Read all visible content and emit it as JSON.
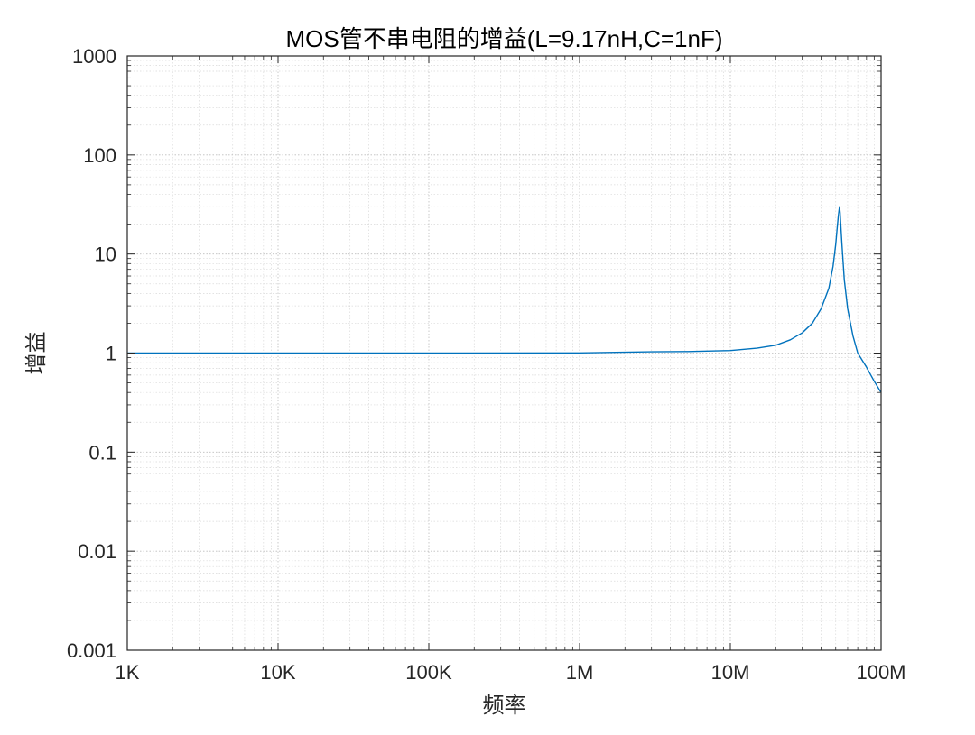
{
  "chart_data": {
    "type": "line",
    "title": "MOS管不串电阻的增益(L=9.17nH,C=1nF)",
    "xlabel": "频率",
    "ylabel": "增益",
    "x_scale": "log",
    "y_scale": "log",
    "xlim": [
      1000,
      100000000
    ],
    "ylim": [
      0.001,
      1000
    ],
    "grid": true,
    "minor_grid": true,
    "x_ticks": [
      {
        "value": 1000,
        "label": "1K"
      },
      {
        "value": 10000,
        "label": "10K"
      },
      {
        "value": 100000,
        "label": "100K"
      },
      {
        "value": 1000000,
        "label": "1M"
      },
      {
        "value": 10000000,
        "label": "10M"
      },
      {
        "value": 100000000,
        "label": "100M"
      }
    ],
    "y_ticks": [
      {
        "value": 0.001,
        "label": "0.001"
      },
      {
        "value": 0.01,
        "label": "0.01"
      },
      {
        "value": 0.1,
        "label": "0.1"
      },
      {
        "value": 1,
        "label": "1"
      },
      {
        "value": 10,
        "label": "10"
      },
      {
        "value": 100,
        "label": "100"
      },
      {
        "value": 1000,
        "label": "1000"
      }
    ],
    "series": [
      {
        "color": "#0072BD",
        "x": [
          1000,
          10000,
          100000,
          1000000,
          3000000,
          5000000,
          10000000,
          15000000,
          20000000,
          25000000,
          30000000,
          35000000,
          40000000,
          45000000,
          48000000,
          50000000,
          51000000,
          52000000,
          52500000,
          53000000,
          53500000,
          54000000,
          55000000,
          57000000,
          60000000,
          65000000,
          70000000,
          80000000,
          90000000,
          100000000
        ],
        "y": [
          1.0,
          1.0,
          1.0,
          1.003,
          1.03,
          1.035,
          1.06,
          1.12,
          1.2,
          1.36,
          1.6,
          2.0,
          2.8,
          4.5,
          7.5,
          12.5,
          17.5,
          24.0,
          27.0,
          30.0,
          26.0,
          20.0,
          12.5,
          5.5,
          2.8,
          1.5,
          1.0,
          0.72,
          0.52,
          0.4
        ]
      }
    ]
  }
}
